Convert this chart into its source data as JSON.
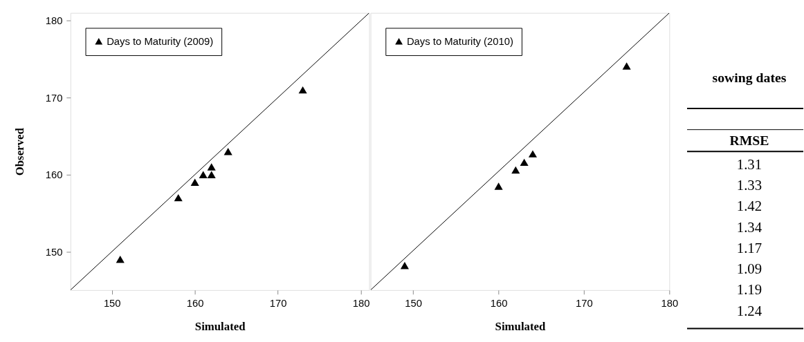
{
  "chart_data": [
    {
      "type": "scatter",
      "xlabel": "Simulated",
      "ylabel": "Observed",
      "xlim": [
        145,
        181
      ],
      "ylim": [
        145,
        181
      ],
      "xticks": [
        150,
        160,
        170,
        180
      ],
      "yticks": [
        150,
        160,
        170,
        180
      ],
      "legend": "top left",
      "series": [
        {
          "type": "line",
          "color": "#000000",
          "x": [
            145,
            181
          ],
          "values": [
            145,
            181
          ]
        },
        {
          "name": "Days to Maturity (2009)",
          "color": "#000000",
          "marker": "triangle",
          "x": [
            151,
            158,
            160,
            161,
            162,
            162,
            164,
            173
          ],
          "values": [
            149,
            157,
            159,
            160,
            161,
            160,
            163,
            171
          ]
        }
      ]
    },
    {
      "type": "scatter",
      "xlabel": "Simulated",
      "xlim": [
        145,
        180
      ],
      "ylim": [
        145,
        181
      ],
      "xticks": [
        150,
        160,
        170,
        180
      ],
      "tick_labels": "x",
      "legend": "top left",
      "series": [
        {
          "type": "line",
          "color": "#000000",
          "x": [
            145,
            180
          ],
          "values": [
            145,
            181
          ]
        },
        {
          "name": "Days to Maturity (2010)",
          "color": "#000000",
          "marker": "triangle",
          "x": [
            149,
            160,
            162,
            163,
            164,
            175
          ],
          "values": [
            148.2,
            158.5,
            160.6,
            161.6,
            162.7,
            174.1
          ]
        }
      ]
    },
    {
      "type": "other",
      "title": "sowing dates",
      "annotations": [
        "RMSE",
        "1.31",
        "1.33",
        "1.42",
        "1.34",
        "1.17",
        "1.09",
        "1.19",
        "1.24"
      ]
    }
  ]
}
